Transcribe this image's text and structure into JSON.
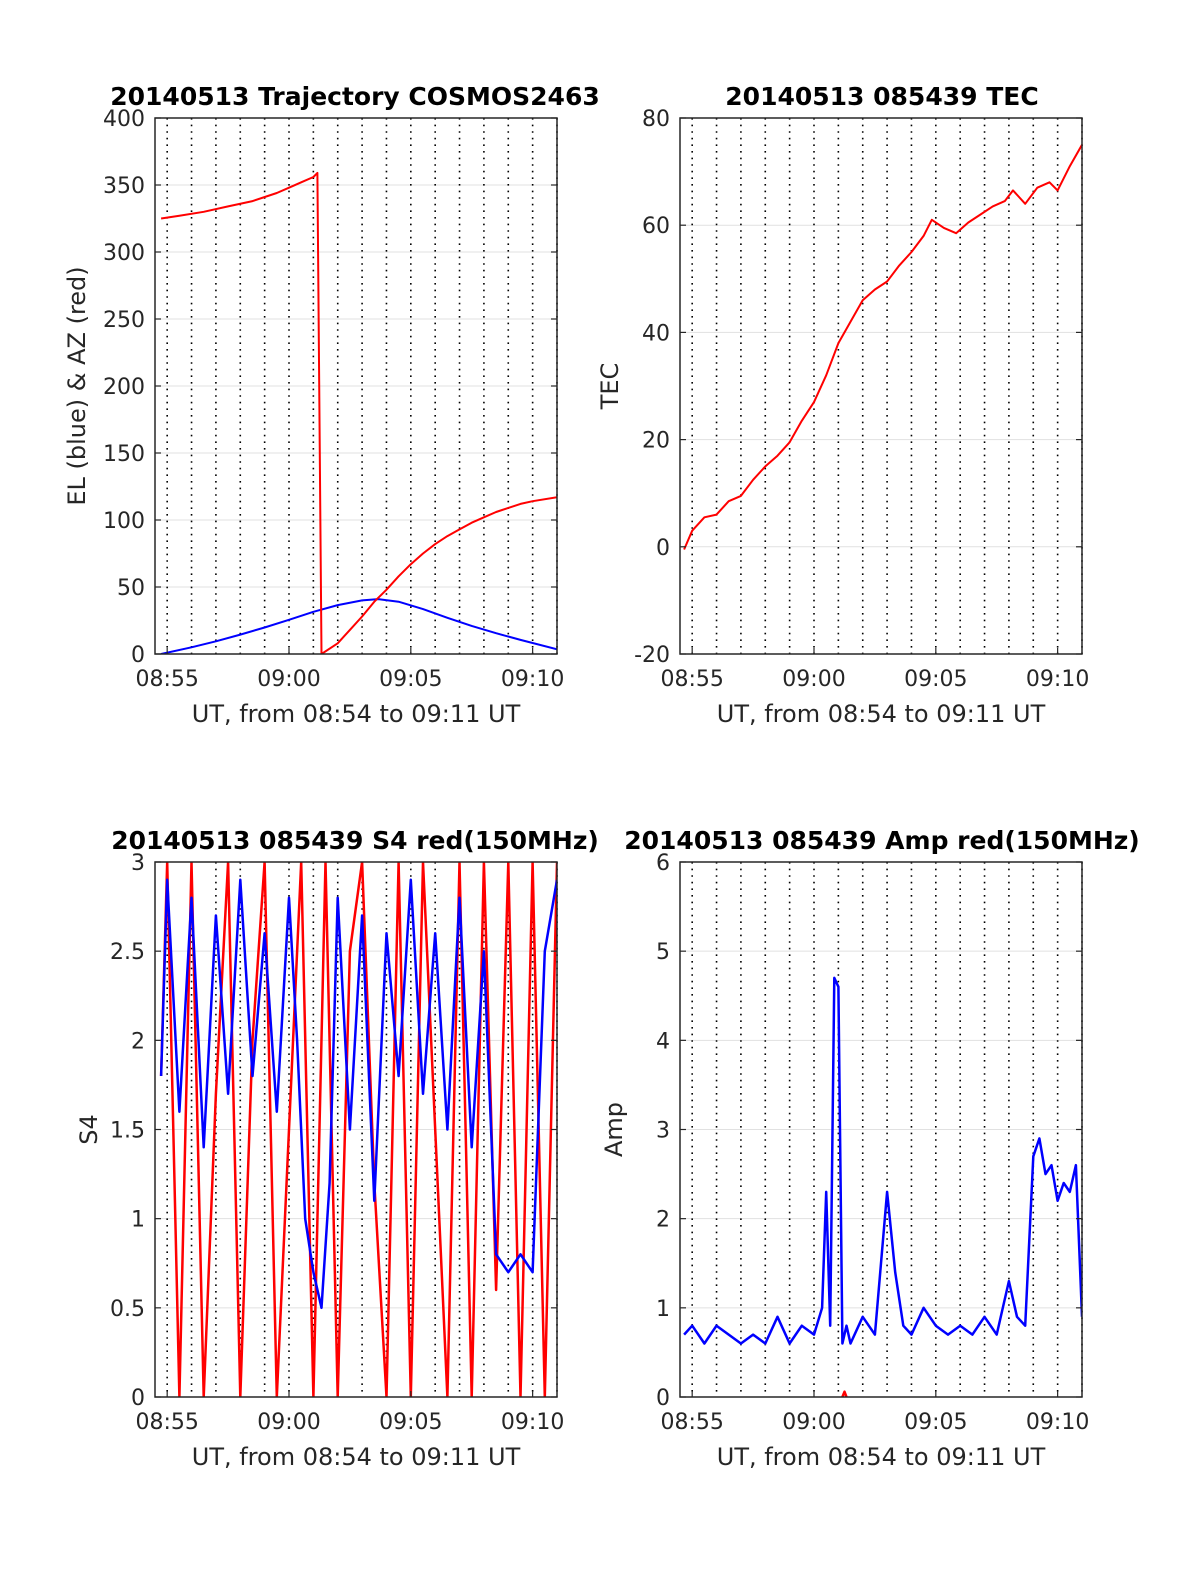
{
  "colors": {
    "el": "#0000ff",
    "az": "#ff0000",
    "tec": "#ff0000",
    "red": "#ff0000",
    "blue": "#0000ff",
    "grid": "#000000",
    "grid_h": "#e1e1e1"
  },
  "chart_data": [
    {
      "id": "trajectory",
      "type": "line",
      "title": "20140513 Trajectory COSMOS2463",
      "xlabel": "UT, from 08:54 to 09:11 UT",
      "ylabel": "EL (blue) & AZ (red)",
      "xlim_minutes": [
        534.5,
        551.0
      ],
      "xticks": [
        {
          "v": 535,
          "label": "08:55"
        },
        {
          "v": 540,
          "label": "09:00"
        },
        {
          "v": 545,
          "label": "09:05"
        },
        {
          "v": 550,
          "label": "09:10"
        }
      ],
      "ylim": [
        0,
        400
      ],
      "yticks": [
        0,
        50,
        100,
        150,
        200,
        250,
        300,
        350,
        400
      ],
      "grid": "vertical dotted every minute, horizontal light gray",
      "series": [
        {
          "name": "EL",
          "color": "#0000ff",
          "x": [
            "08:54:45",
            "08:56:00",
            "08:57:00",
            "08:58:00",
            "08:59:00",
            "09:00:00",
            "09:01:00",
            "09:02:00",
            "09:03:00",
            "09:03:40",
            "09:04:30",
            "09:05:30",
            "09:06:30",
            "09:07:30",
            "09:08:30",
            "09:09:30",
            "09:11:00"
          ],
          "values": [
            0,
            5.0,
            9.5,
            14.5,
            19.8,
            25.5,
            31.5,
            36.5,
            40.0,
            41.0,
            39.0,
            33.5,
            27.0,
            21.0,
            15.5,
            10.5,
            3.5
          ]
        },
        {
          "name": "AZ",
          "color": "#ff0000",
          "x": [
            "08:54:45",
            "08:55:30",
            "08:56:30",
            "08:57:30",
            "08:58:30",
            "08:59:30",
            "09:00:00",
            "09:00:30",
            "09:01:00",
            "09:01:10",
            "09:01:20",
            "09:02:00",
            "09:02:30",
            "09:03:00",
            "09:03:30",
            "09:04:00",
            "09:04:30",
            "09:05:00",
            "09:05:30",
            "09:06:00",
            "09:06:30",
            "09:07:00",
            "09:07:30",
            "09:08:00",
            "09:08:30",
            "09:09:00",
            "09:09:30",
            "09:10:00",
            "09:11:00"
          ],
          "values": [
            325,
            327,
            330,
            334,
            338,
            344,
            348,
            352,
            356,
            359,
            0,
            8,
            18,
            28,
            39,
            48,
            58,
            67,
            75,
            82,
            88,
            93,
            98,
            102,
            106,
            109,
            112,
            114,
            117
          ]
        }
      ]
    },
    {
      "id": "tec",
      "type": "line",
      "title": "20140513 085439 TEC",
      "xlabel": "UT, from 08:54 to 09:11 UT",
      "ylabel": "TEC",
      "xlim_minutes": [
        534.5,
        551.0
      ],
      "xticks": [
        {
          "v": 535,
          "label": "08:55"
        },
        {
          "v": 540,
          "label": "09:00"
        },
        {
          "v": 545,
          "label": "09:05"
        },
        {
          "v": 550,
          "label": "09:10"
        }
      ],
      "ylim": [
        -20,
        80
      ],
      "yticks": [
        -20,
        0,
        20,
        40,
        60,
        80
      ],
      "grid": "vertical dotted every minute, horizontal light gray",
      "series": [
        {
          "name": "TEC",
          "color": "#ff0000",
          "x": [
            "08:54:40",
            "08:55:00",
            "08:55:30",
            "08:56:00",
            "08:56:30",
            "08:57:00",
            "08:57:30",
            "08:58:00",
            "08:58:30",
            "08:59:00",
            "08:59:30",
            "09:00:00",
            "09:00:30",
            "09:01:00",
            "09:01:30",
            "09:02:00",
            "09:02:30",
            "09:03:00",
            "09:03:30",
            "09:04:00",
            "09:04:30",
            "09:04:50",
            "09:05:20",
            "09:05:50",
            "09:06:20",
            "09:06:50",
            "09:07:20",
            "09:07:50",
            "09:08:10",
            "09:08:40",
            "09:09:10",
            "09:09:40",
            "09:10:00",
            "09:10:30",
            "09:11:00"
          ],
          "values": [
            -0.5,
            3.0,
            5.5,
            6.0,
            8.5,
            9.5,
            12.5,
            15.0,
            17.0,
            19.5,
            23.5,
            27.0,
            32.0,
            38.0,
            42.0,
            46.0,
            48.0,
            49.5,
            52.5,
            55.0,
            58.0,
            61.0,
            59.5,
            58.5,
            60.5,
            62.0,
            63.5,
            64.5,
            66.5,
            64.0,
            67.0,
            68.0,
            66.5,
            71.0,
            75.0
          ]
        }
      ]
    },
    {
      "id": "s4",
      "type": "line",
      "title": "20140513 085439 S4 red(150MHz)",
      "xlabel": "UT, from 08:54 to 09:11 UT",
      "ylabel": "S4",
      "xlim_minutes": [
        534.5,
        551.0
      ],
      "xticks": [
        {
          "v": 535,
          "label": "08:55"
        },
        {
          "v": 540,
          "label": "09:00"
        },
        {
          "v": 545,
          "label": "09:05"
        },
        {
          "v": 550,
          "label": "09:10"
        }
      ],
      "ylim": [
        0,
        3
      ],
      "yticks": [
        0,
        0.5,
        1,
        1.5,
        2,
        2.5,
        3
      ],
      "yticklabels": [
        "0",
        "0.5",
        "1",
        "1.5",
        "2",
        "2.5",
        "3"
      ],
      "grid": "vertical dotted every minute, horizontal light gray",
      "series": [
        {
          "name": "red",
          "color": "#ff0000",
          "x": [
            "08:54:45",
            "08:55:00",
            "08:55:30",
            "08:56:00",
            "08:56:30",
            "08:57:00",
            "08:57:30",
            "08:58:00",
            "08:58:30",
            "08:59:00",
            "08:59:30",
            "09:00:00",
            "09:00:30",
            "09:01:00",
            "09:01:30",
            "09:02:00",
            "09:02:30",
            "09:03:00",
            "09:03:30",
            "09:04:00",
            "09:04:30",
            "09:05:00",
            "09:05:30",
            "09:06:00",
            "09:06:30",
            "09:07:00",
            "09:07:30",
            "09:08:00",
            "09:08:30",
            "09:09:00",
            "09:09:30",
            "09:10:00",
            "09:10:30",
            "09:11:00"
          ],
          "values": [
            1.8,
            3.0,
            0,
            3.0,
            0,
            1.7,
            3.0,
            0,
            2.0,
            3.0,
            0,
            1.5,
            3.0,
            0,
            3.0,
            0,
            2.5,
            3.0,
            1.2,
            0,
            3.0,
            0,
            3.0,
            1.5,
            0,
            3.0,
            0,
            3.0,
            0.6,
            3.0,
            0,
            3.0,
            0,
            3.0
          ]
        },
        {
          "name": "blue",
          "color": "#0000ff",
          "x": [
            "08:54:45",
            "08:55:00",
            "08:55:30",
            "08:56:00",
            "08:56:30",
            "08:57:00",
            "08:57:30",
            "08:58:00",
            "08:58:30",
            "08:59:00",
            "08:59:30",
            "09:00:00",
            "09:00:20",
            "09:00:40",
            "09:01:00",
            "09:01:20",
            "09:01:40",
            "09:02:00",
            "09:02:30",
            "09:03:00",
            "09:03:30",
            "09:04:00",
            "09:04:30",
            "09:05:00",
            "09:05:30",
            "09:06:00",
            "09:06:30",
            "09:07:00",
            "09:07:30",
            "09:08:00",
            "09:08:30",
            "09:09:00",
            "09:09:30",
            "09:10:00",
            "09:10:30",
            "09:11:00"
          ],
          "values": [
            1.8,
            2.9,
            1.6,
            2.8,
            1.4,
            2.7,
            1.7,
            2.9,
            1.8,
            2.6,
            1.6,
            2.8,
            2.0,
            1.0,
            0.7,
            0.5,
            1.2,
            2.8,
            1.5,
            2.7,
            1.1,
            2.6,
            1.8,
            2.9,
            1.7,
            2.6,
            1.5,
            2.8,
            1.4,
            2.5,
            0.8,
            0.7,
            0.8,
            0.7,
            2.5,
            2.9
          ]
        }
      ]
    },
    {
      "id": "amp",
      "type": "line",
      "title": "20140513 085439 Amp red(150MHz)",
      "xlabel": "UT, from 08:54 to 09:11 UT",
      "ylabel": "Amp",
      "xlim_minutes": [
        534.5,
        551.0
      ],
      "xticks": [
        {
          "v": 535,
          "label": "08:55"
        },
        {
          "v": 540,
          "label": "09:00"
        },
        {
          "v": 545,
          "label": "09:05"
        },
        {
          "v": 550,
          "label": "09:10"
        }
      ],
      "ylim": [
        0,
        6
      ],
      "yticks": [
        0,
        1,
        2,
        3,
        4,
        5,
        6
      ],
      "grid": "vertical dotted every minute, horizontal light gray",
      "series": [
        {
          "name": "red",
          "color": "#ff0000",
          "x": [
            "09:01:10",
            "09:01:15",
            "09:01:20"
          ],
          "values": [
            0,
            0.06,
            0
          ]
        },
        {
          "name": "blue",
          "color": "#0000ff",
          "x": [
            "08:54:40",
            "08:55:00",
            "08:55:30",
            "08:56:00",
            "08:56:30",
            "08:57:00",
            "08:57:30",
            "08:58:00",
            "08:58:30",
            "08:59:00",
            "08:59:30",
            "09:00:00",
            "09:00:20",
            "09:00:30",
            "09:00:40",
            "09:00:50",
            "09:01:00",
            "09:01:10",
            "09:01:20",
            "09:01:30",
            "09:02:00",
            "09:02:30",
            "09:03:00",
            "09:03:20",
            "09:03:40",
            "09:04:00",
            "09:04:30",
            "09:05:00",
            "09:05:30",
            "09:06:00",
            "09:06:30",
            "09:07:00",
            "09:07:30",
            "09:08:00",
            "09:08:20",
            "09:08:40",
            "09:09:00",
            "09:09:15",
            "09:09:30",
            "09:09:45",
            "09:10:00",
            "09:10:15",
            "09:10:30",
            "09:10:45",
            "09:11:00"
          ],
          "values": [
            0.7,
            0.8,
            0.6,
            0.8,
            0.7,
            0.6,
            0.7,
            0.6,
            0.9,
            0.6,
            0.8,
            0.7,
            1.0,
            2.3,
            0.8,
            4.7,
            4.6,
            0.6,
            0.8,
            0.6,
            0.9,
            0.7,
            2.3,
            1.4,
            0.8,
            0.7,
            1.0,
            0.8,
            0.7,
            0.8,
            0.7,
            0.9,
            0.7,
            1.3,
            0.9,
            0.8,
            2.7,
            2.9,
            2.5,
            2.6,
            2.2,
            2.4,
            2.3,
            2.6,
            0.9
          ]
        }
      ]
    }
  ]
}
